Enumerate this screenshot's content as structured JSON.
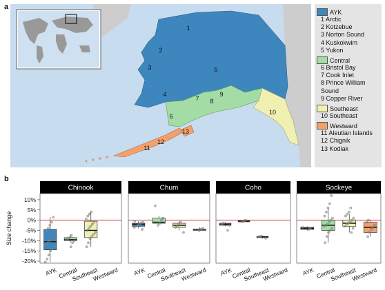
{
  "panel_a_letter": "a",
  "panel_b_letter": "b",
  "colors": {
    "ocean": "#c8dcef",
    "land": "#cdcdcd",
    "AYK": "#3e87be",
    "Central": "#a3dca4",
    "Southeast": "#f0f0b2",
    "Westward": "#f2a16d",
    "zero_line": "#d43030",
    "facet_header": "#000000"
  },
  "map": {
    "region_labels": [
      "1",
      "2",
      "3",
      "4",
      "5",
      "6",
      "7",
      "8",
      "9",
      "10",
      "11",
      "12",
      "13"
    ]
  },
  "legend": {
    "groups": [
      {
        "name": "AYK",
        "color": "#3e87be",
        "items": [
          "1 Arctic",
          "2 Kotzebue",
          "3 Norton Sound",
          "4 Kuskokwim",
          "5 Yukon"
        ]
      },
      {
        "name": "Central",
        "color": "#a3dca4",
        "items": [
          "6 Bristol Bay",
          "7 Cook Inlet",
          "8 Prince William",
          "Sound",
          "9 Copper River"
        ]
      },
      {
        "name": "Southeast",
        "color": "#f0f0b2",
        "items": [
          "10 Southeast"
        ]
      },
      {
        "name": "Westward",
        "color": "#f2a16d",
        "items": [
          "11 Aleutian Islands",
          "12 Chignik",
          "13 Kodiak"
        ]
      }
    ]
  },
  "chart_data": {
    "type": "box",
    "ylabel": "Size change",
    "ylim": [
      -21,
      13
    ],
    "yticks": [
      10,
      5,
      0,
      -5,
      -10,
      -15,
      -20
    ],
    "ytick_labels": [
      "10%",
      "5%",
      "0%",
      "-5%",
      "-10%",
      "-15%",
      "-20%"
    ],
    "reference_line": 0,
    "categories": [
      "AYK",
      "Central",
      "Southeast",
      "Westward"
    ],
    "facets": [
      {
        "title": "Chinook",
        "boxes": [
          {
            "category": "AYK",
            "q1": -14.5,
            "median": -10.5,
            "q3": -4.5,
            "whisker_low": -20.5,
            "whisker_high": 1.5,
            "points": [
              -20.5,
              -19,
              -17,
              -15,
              -14,
              -13,
              -12,
              -11,
              -10,
              -9.5,
              -8,
              -6,
              -5,
              -4,
              -2.5,
              -1,
              1.5
            ]
          },
          {
            "category": "Central",
            "q1": -10,
            "median": -9.5,
            "q3": -8.5,
            "whisker_low": -11,
            "whisker_high": -7,
            "points": [
              -13,
              -11,
              -10,
              -9.5,
              -9,
              -8.5,
              -7.5
            ]
          },
          {
            "category": "Southeast",
            "q1": -8.5,
            "median": -5,
            "q3": -0.5,
            "whisker_low": -13,
            "whisker_high": 4,
            "points": [
              -13,
              -11,
              -9,
              -8,
              -7,
              -6,
              -5,
              -4,
              -3,
              -2,
              -1,
              0.5,
              2,
              3,
              4
            ]
          }
        ]
      },
      {
        "title": "Chum",
        "boxes": [
          {
            "category": "AYK",
            "q1": -3,
            "median": -2,
            "q3": -1.5,
            "whisker_low": -4,
            "whisker_high": -0.5,
            "points": [
              -4.5,
              -3.5,
              -3,
              -2.5,
              -2,
              -1.5,
              -1,
              -0.5
            ]
          },
          {
            "category": "Central",
            "q1": -1.5,
            "median": -1,
            "q3": 1,
            "whisker_low": -2,
            "whisker_high": 2,
            "points": [
              -2.5,
              -1.5,
              0,
              1,
              7
            ]
          },
          {
            "category": "Southeast",
            "q1": -3.5,
            "median": -2.5,
            "q3": -1.5,
            "whisker_low": -5,
            "whisker_high": -0.5,
            "points": [
              -6,
              -3.5,
              -3,
              -2,
              -1
            ]
          },
          {
            "category": "Westward",
            "q1": -4.5,
            "median": -4.5,
            "q3": -4.5,
            "whisker_low": -5.5,
            "whisker_high": -3.5,
            "points": [
              -5,
              -4.5,
              -4
            ]
          }
        ]
      },
      {
        "title": "Coho",
        "boxes": [
          {
            "category": "AYK",
            "q1": -2.5,
            "median": -2,
            "q3": -1.5,
            "whisker_low": -3,
            "whisker_high": -1,
            "points": [
              -5,
              -2.5,
              -2,
              -1.5
            ]
          },
          {
            "category": "Central",
            "q1": -0.8,
            "median": -0.5,
            "q3": -0.3,
            "whisker_low": -1,
            "whisker_high": 0,
            "points": [
              -0.8,
              -0.5,
              0
            ]
          },
          {
            "category": "Southeast",
            "q1": -8.5,
            "median": -8.2,
            "q3": -8,
            "whisker_low": -9,
            "whisker_high": -7.5,
            "points": [
              -8.8,
              -8.3,
              -8,
              -7.8
            ]
          }
        ]
      },
      {
        "title": "Sockeye",
        "boxes": [
          {
            "category": "AYK",
            "q1": -4.5,
            "median": -4,
            "q3": -3.5,
            "whisker_low": -5,
            "whisker_high": -3,
            "points": [
              -4.5,
              -4,
              -3.5
            ]
          },
          {
            "category": "Central",
            "q1": -5,
            "median": -2.5,
            "q3": 0,
            "whisker_low": -11,
            "whisker_high": 6,
            "points": [
              -11,
              -8,
              -6,
              -5,
              -4,
              -3,
              -2.5,
              -2,
              -1,
              0,
              1,
              2,
              4,
              6,
              8,
              12
            ]
          },
          {
            "category": "Southeast",
            "q1": -3,
            "median": -1.5,
            "q3": 0,
            "whisker_low": -6,
            "whisker_high": 3,
            "points": [
              -6,
              -4,
              -3,
              -2,
              -1.5,
              -1,
              0,
              1,
              2,
              3,
              4,
              6
            ]
          },
          {
            "category": "Westward",
            "q1": -6,
            "median": -3.5,
            "q3": -1,
            "whisker_low": -8,
            "whisker_high": 0,
            "points": [
              -8,
              -6,
              -4.5,
              -3.5,
              -2.5,
              -1,
              0
            ]
          }
        ]
      }
    ]
  }
}
